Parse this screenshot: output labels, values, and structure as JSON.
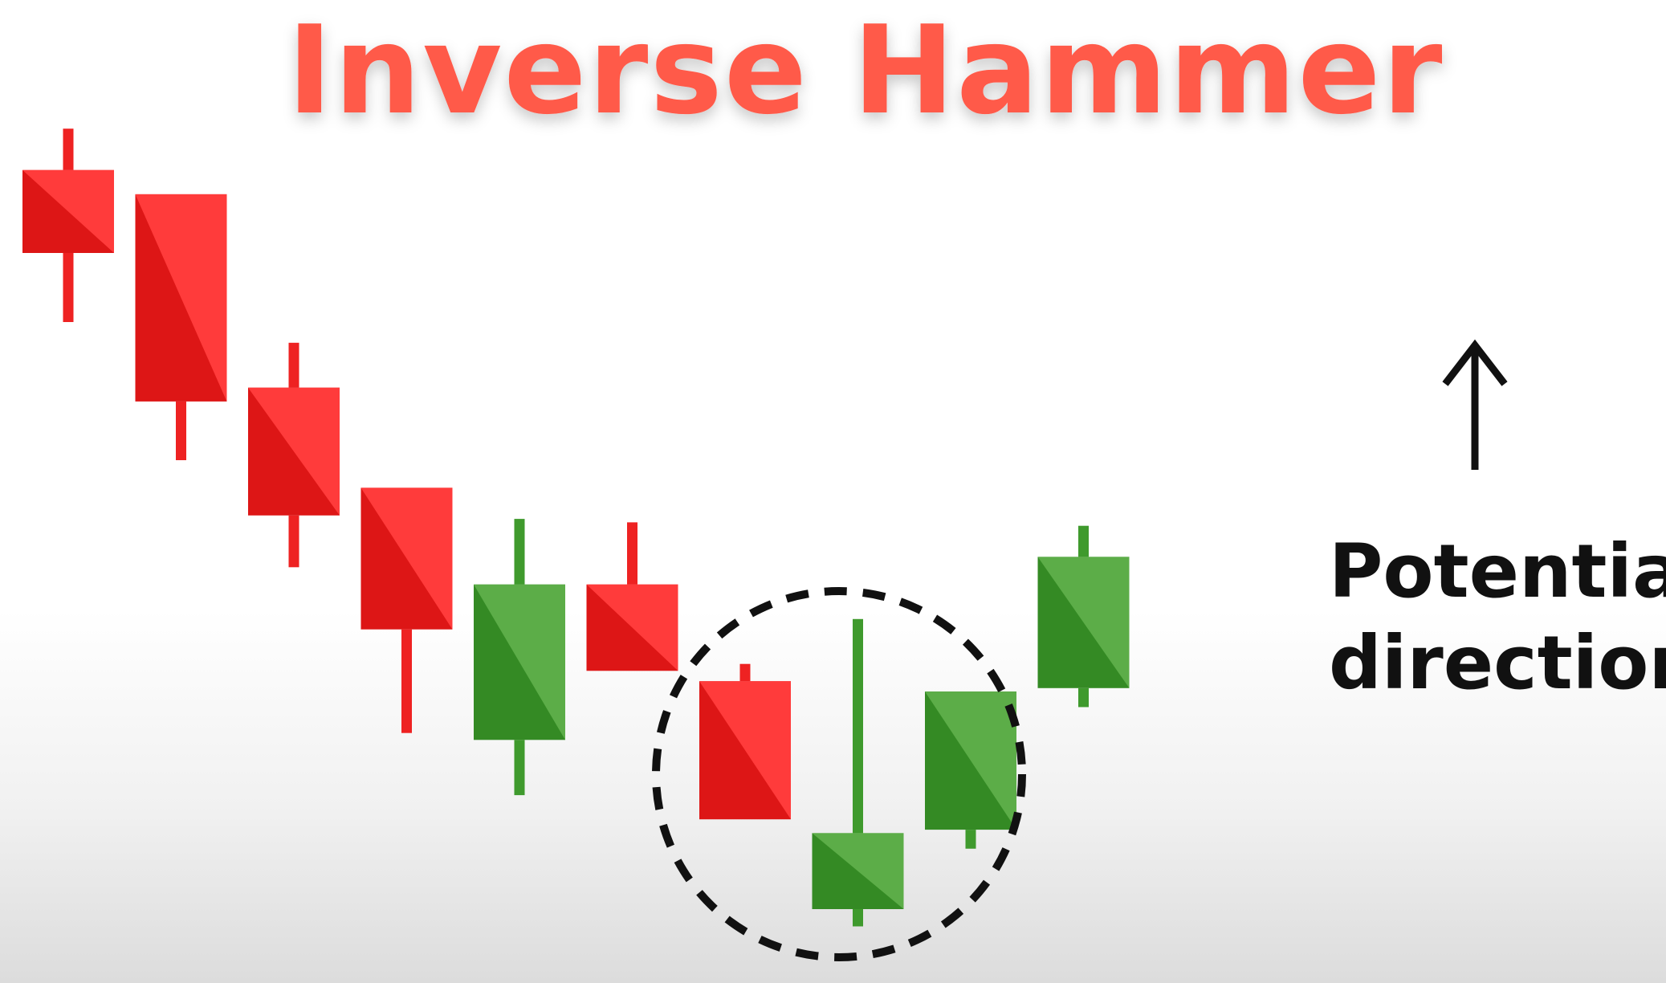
{
  "chart_data": {
    "type": "candlestick",
    "title": "Inverse Hammer",
    "annotation": {
      "direction_arrow": "up-arrow",
      "lines": [
        "Potential",
        "direction"
      ]
    },
    "highlight": {
      "style": "dashed-circle",
      "covers_candles": [
        7,
        8,
        9
      ]
    },
    "colors": {
      "bearish": "#ee2222",
      "bullish": "#3f9a2d",
      "highlight": "#111111",
      "title": "#ff5a4a"
    },
    "ylim": [
      0,
      100
    ],
    "candles": [
      {
        "index": 1,
        "direction": "bearish",
        "open": 89.6,
        "close": 80.0,
        "high": 94.4,
        "low": 72.0
      },
      {
        "index": 2,
        "direction": "bearish",
        "open": 86.8,
        "close": 62.8,
        "low": 56.0
      },
      {
        "index": 3,
        "direction": "bearish",
        "open": 64.4,
        "close": 49.6,
        "high": 69.6,
        "low": 43.6
      },
      {
        "index": 4,
        "direction": "bearish",
        "open": 52.8,
        "close": 36.4,
        "low": 24.4
      },
      {
        "index": 5,
        "direction": "bullish",
        "open": 23.6,
        "close": 41.6,
        "high": 49.2,
        "low": 17.2
      },
      {
        "index": 6,
        "direction": "bearish",
        "open": 41.6,
        "close": 31.6,
        "high": 48.8
      },
      {
        "index": 7,
        "direction": "bearish",
        "open": 30.4,
        "close": 14.4,
        "high": 32.4
      },
      {
        "index": 8,
        "direction": "bullish",
        "open": 4.0,
        "close": 12.8,
        "high": 37.6,
        "low": 2.0
      },
      {
        "index": 9,
        "direction": "bullish",
        "open": 13.2,
        "close": 29.2,
        "low": 11.0
      },
      {
        "index": 10,
        "direction": "bullish",
        "open": 29.6,
        "close": 44.8,
        "high": 48.4,
        "low": 27.4
      }
    ]
  }
}
